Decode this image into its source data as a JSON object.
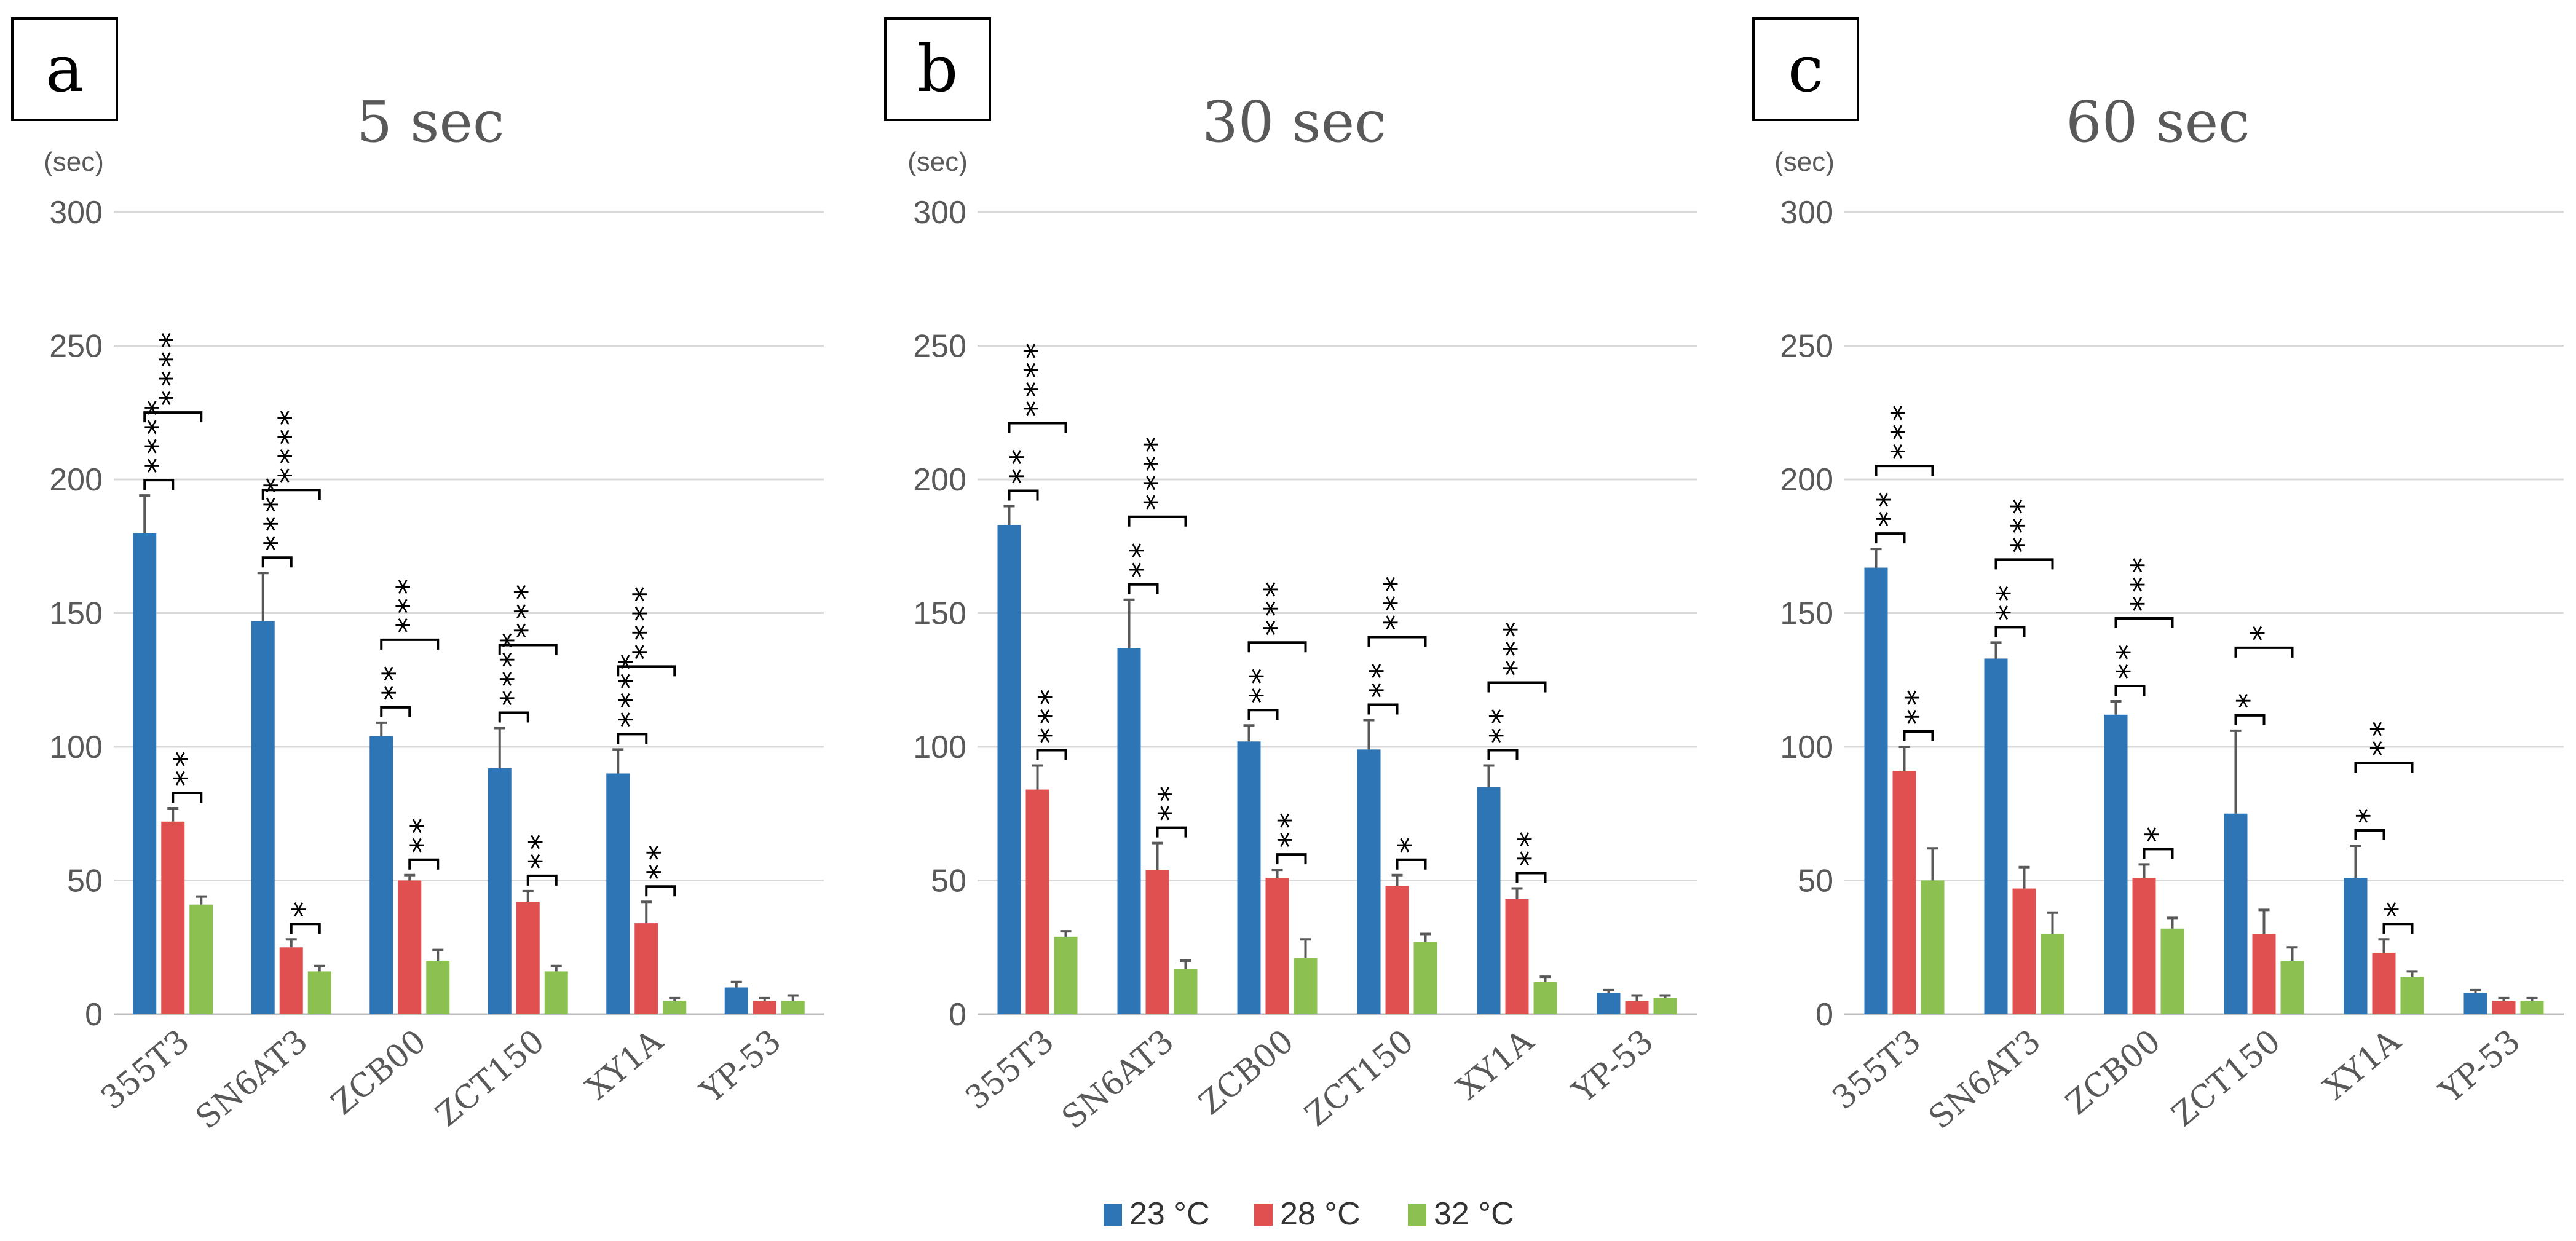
{
  "chart_data": [
    {
      "type": "bar",
      "panel": "a",
      "title": "5 sec",
      "ylabel": "(sec)",
      "ylim": [
        0,
        300
      ],
      "yticks": [
        0,
        50,
        100,
        150,
        200,
        250,
        300
      ],
      "grid": true,
      "categories": [
        "355T3",
        "SN6AT3",
        "ZCB00",
        "ZCT150",
        "XY1A",
        "YP-53"
      ],
      "series": [
        {
          "name": "23 °C",
          "color": "#2E75B6",
          "values": [
            180,
            147,
            104,
            92,
            90,
            10
          ],
          "errors": [
            14,
            18,
            5,
            15,
            9,
            2
          ]
        },
        {
          "name": "28 °C",
          "color": "#E05050",
          "values": [
            72,
            25,
            50,
            42,
            34,
            5
          ],
          "errors": [
            5,
            3,
            2,
            4,
            8,
            1
          ]
        },
        {
          "name": "32 °C",
          "color": "#8CC152",
          "values": [
            41,
            16,
            20,
            16,
            5,
            5
          ],
          "errors": [
            3,
            2,
            4,
            2,
            1,
            2
          ]
        }
      ],
      "annotations": [
        {
          "category": "355T3",
          "pair": "23-28",
          "label": "****"
        },
        {
          "category": "355T3",
          "pair": "23-32",
          "label": "****"
        },
        {
          "category": "355T3",
          "pair": "28-32",
          "label": "**"
        },
        {
          "category": "SN6AT3",
          "pair": "23-28",
          "label": "****"
        },
        {
          "category": "SN6AT3",
          "pair": "23-32",
          "label": "****"
        },
        {
          "category": "SN6AT3",
          "pair": "28-32",
          "label": "*"
        },
        {
          "category": "ZCB00",
          "pair": "23-28",
          "label": "**"
        },
        {
          "category": "ZCB00",
          "pair": "23-32",
          "label": "***"
        },
        {
          "category": "ZCB00",
          "pair": "28-32",
          "label": "**"
        },
        {
          "category": "ZCT150",
          "pair": "23-28",
          "label": "****"
        },
        {
          "category": "ZCT150",
          "pair": "23-32",
          "label": "***"
        },
        {
          "category": "ZCT150",
          "pair": "28-32",
          "label": "**"
        },
        {
          "category": "XY1A",
          "pair": "23-28",
          "label": "****"
        },
        {
          "category": "XY1A",
          "pair": "23-32",
          "label": "****"
        },
        {
          "category": "XY1A",
          "pair": "28-32",
          "label": "**"
        }
      ]
    },
    {
      "type": "bar",
      "panel": "b",
      "title": "30 sec",
      "ylabel": "(sec)",
      "ylim": [
        0,
        300
      ],
      "yticks": [
        0,
        50,
        100,
        150,
        200,
        250,
        300
      ],
      "grid": true,
      "categories": [
        "355T3",
        "SN6AT3",
        "ZCB00",
        "ZCT150",
        "XY1A",
        "YP-53"
      ],
      "series": [
        {
          "name": "23 °C",
          "color": "#2E75B6",
          "values": [
            183,
            137,
            102,
            99,
            85,
            8
          ],
          "errors": [
            7,
            18,
            6,
            11,
            8,
            1
          ]
        },
        {
          "name": "28 °C",
          "color": "#E05050",
          "values": [
            84,
            54,
            51,
            48,
            43,
            5
          ],
          "errors": [
            9,
            10,
            3,
            4,
            4,
            2
          ]
        },
        {
          "name": "32 °C",
          "color": "#8CC152",
          "values": [
            29,
            17,
            21,
            27,
            12,
            6
          ],
          "errors": [
            2,
            3,
            7,
            3,
            2,
            1
          ]
        }
      ],
      "annotations": [
        {
          "category": "355T3",
          "pair": "23-28",
          "label": "**"
        },
        {
          "category": "355T3",
          "pair": "23-32",
          "label": "****"
        },
        {
          "category": "355T3",
          "pair": "28-32",
          "label": "***"
        },
        {
          "category": "SN6AT3",
          "pair": "23-28",
          "label": "**"
        },
        {
          "category": "SN6AT3",
          "pair": "23-32",
          "label": "****"
        },
        {
          "category": "SN6AT3",
          "pair": "28-32",
          "label": "**"
        },
        {
          "category": "ZCB00",
          "pair": "23-28",
          "label": "**"
        },
        {
          "category": "ZCB00",
          "pair": "23-32",
          "label": "***"
        },
        {
          "category": "ZCB00",
          "pair": "28-32",
          "label": "**"
        },
        {
          "category": "ZCT150",
          "pair": "23-28",
          "label": "**"
        },
        {
          "category": "ZCT150",
          "pair": "23-32",
          "label": "***"
        },
        {
          "category": "ZCT150",
          "pair": "28-32",
          "label": "*"
        },
        {
          "category": "XY1A",
          "pair": "23-28",
          "label": "**"
        },
        {
          "category": "XY1A",
          "pair": "23-32",
          "label": "***"
        },
        {
          "category": "XY1A",
          "pair": "28-32",
          "label": "**"
        }
      ]
    },
    {
      "type": "bar",
      "panel": "c",
      "title": "60 sec",
      "ylabel": "(sec)",
      "ylim": [
        0,
        300
      ],
      "yticks": [
        0,
        50,
        100,
        150,
        200,
        250,
        300
      ],
      "grid": true,
      "categories": [
        "355T3",
        "SN6AT3",
        "ZCB00",
        "ZCT150",
        "XY1A",
        "YP-53"
      ],
      "series": [
        {
          "name": "23 °C",
          "color": "#2E75B6",
          "values": [
            167,
            133,
            112,
            75,
            51,
            8
          ],
          "errors": [
            7,
            6,
            5,
            31,
            12,
            1
          ]
        },
        {
          "name": "28 °C",
          "color": "#E05050",
          "values": [
            91,
            47,
            51,
            30,
            23,
            5
          ],
          "errors": [
            9,
            8,
            5,
            9,
            5,
            1
          ]
        },
        {
          "name": "32 °C",
          "color": "#8CC152",
          "values": [
            50,
            30,
            32,
            20,
            14,
            5
          ],
          "errors": [
            12,
            8,
            4,
            5,
            2,
            1
          ]
        }
      ],
      "annotations": [
        {
          "category": "355T3",
          "pair": "23-28",
          "label": "**"
        },
        {
          "category": "355T3",
          "pair": "23-32",
          "label": "***"
        },
        {
          "category": "355T3",
          "pair": "28-32",
          "label": "**"
        },
        {
          "category": "SN6AT3",
          "pair": "23-28",
          "label": "**"
        },
        {
          "category": "SN6AT3",
          "pair": "23-32",
          "label": "***"
        },
        {
          "category": "ZCB00",
          "pair": "23-28",
          "label": "**"
        },
        {
          "category": "ZCB00",
          "pair": "23-32",
          "label": "***"
        },
        {
          "category": "ZCB00",
          "pair": "28-32",
          "label": "*"
        },
        {
          "category": "ZCT150",
          "pair": "23-28",
          "label": "*"
        },
        {
          "category": "ZCT150",
          "pair": "23-32",
          "label": "*"
        },
        {
          "category": "XY1A",
          "pair": "23-28",
          "label": "*"
        },
        {
          "category": "XY1A",
          "pair": "23-32",
          "label": "**"
        },
        {
          "category": "XY1A",
          "pair": "28-32",
          "label": "*"
        }
      ]
    }
  ],
  "legend": {
    "placement": "bottom-center",
    "items": [
      {
        "name": "23 °C",
        "color": "#2E75B6"
      },
      {
        "name": "28 °C",
        "color": "#E05050"
      },
      {
        "name": "32 °C",
        "color": "#8CC152"
      }
    ]
  }
}
